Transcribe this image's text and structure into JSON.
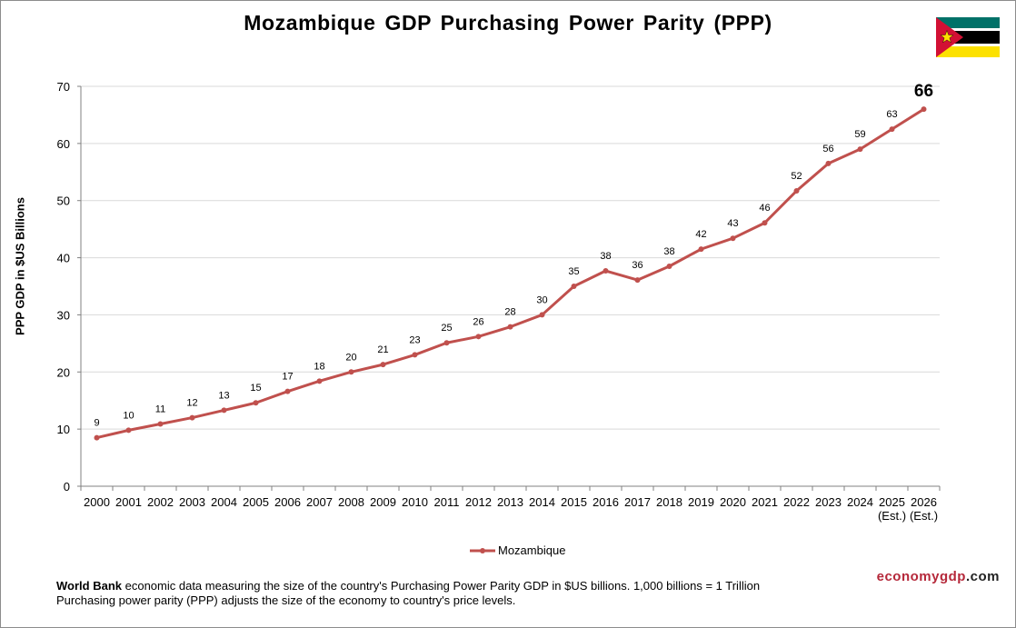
{
  "page": {
    "title": "Mozambique GDP Purchasing Power Parity (PPP)",
    "footer_bold": "World Bank",
    "footer_line1_rest": " economic data measuring the size of the country's Purchasing Power Parity GDP in $US billions. 1,000 billions = 1 Trillion",
    "footer_line2": "Purchasing power parity (PPP) adjusts the size of the economy to country's price levels.",
    "brand_part1": "economy",
    "brand_part2": "gdp",
    "brand_part3": ".com"
  },
  "flag": {
    "colors": {
      "green": "#007168",
      "black": "#000000",
      "yellow": "#FCE100",
      "red": "#D21034",
      "white": "#FFFFFF"
    },
    "icon": "mozambique-flag"
  },
  "chart_data": {
    "type": "line",
    "title": "Mozambique GDP Purchasing Power Parity (PPP)",
    "ylabel": "PPP GDP in $US Billions",
    "xlabel": "",
    "ylim": [
      0,
      70
    ],
    "yticks": [
      "0",
      "10",
      "20",
      "30",
      "40",
      "50",
      "60",
      "70"
    ],
    "grid": true,
    "legend_position": "bottom-center",
    "categories": [
      "2000",
      "2001",
      "2002",
      "2003",
      "2004",
      "2005",
      "2006",
      "2007",
      "2008",
      "2009",
      "2010",
      "2011",
      "2012",
      "2013",
      "2014",
      "2015",
      "2016",
      "2017",
      "2018",
      "2019",
      "2020",
      "2021",
      "2022",
      "2023",
      "2024",
      "2025",
      "2026"
    ],
    "category_sublabels": [
      "",
      "",
      "",
      "",
      "",
      "",
      "",
      "",
      "",
      "",
      "",
      "",
      "",
      "",
      "",
      "",
      "",
      "",
      "",
      "",
      "",
      "",
      "",
      "",
      "",
      "(Est.)",
      "(Est.)"
    ],
    "series": [
      {
        "name": "Mozambique",
        "color": "#C0504D",
        "values": [
          8.5,
          9.8,
          10.9,
          12.0,
          13.3,
          14.6,
          16.6,
          18.4,
          20.0,
          21.3,
          23.0,
          25.1,
          26.2,
          27.9,
          30.0,
          35.0,
          37.7,
          36.1,
          38.5,
          41.5,
          43.4,
          46.1,
          51.7,
          56.5,
          59.0,
          62.5,
          66.0
        ],
        "labels": [
          "9",
          "10",
          "11",
          "12",
          "13",
          "15",
          "17",
          "18",
          "20",
          "21",
          "23",
          "25",
          "26",
          "28",
          "30",
          "35",
          "38",
          "36",
          "38",
          "42",
          "43",
          "46",
          "52",
          "56",
          "59",
          "63",
          "66"
        ]
      }
    ]
  }
}
